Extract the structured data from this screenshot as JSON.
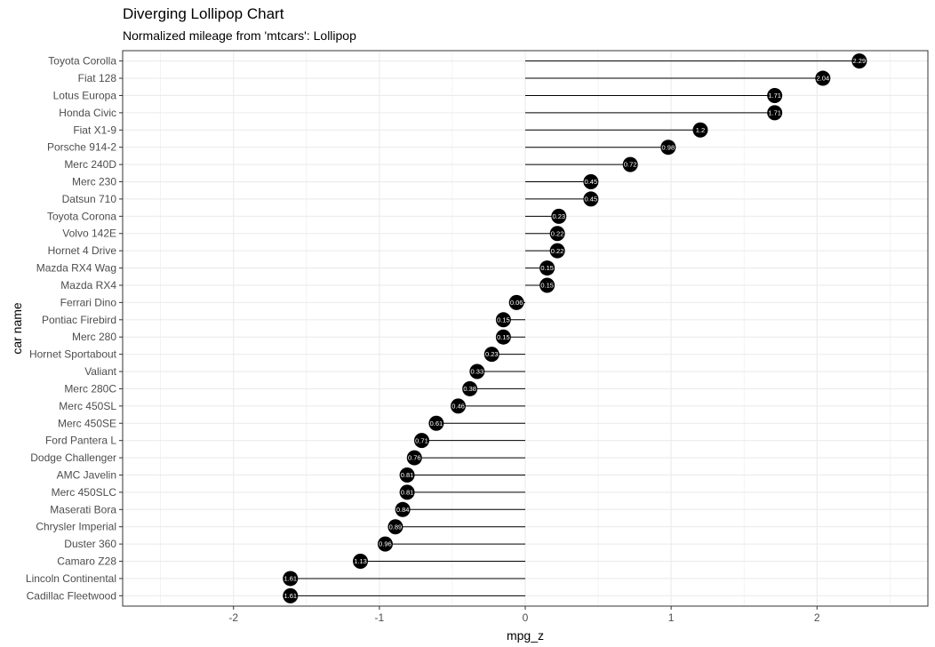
{
  "chart_data": {
    "type": "lollipop",
    "title": "Diverging Lollipop Chart",
    "subtitle": "Normalized mileage from 'mtcars': Lollipop",
    "xlabel": "mpg_z",
    "ylabel": "car name",
    "xlim": [
      -2.76,
      2.76
    ],
    "xticks": [
      -2,
      -1,
      0,
      1,
      2
    ],
    "grid": true,
    "colors": {
      "point": "#000000",
      "segment": "#000000",
      "label": "#ffffff",
      "grid": "#ebebeb",
      "border": "#333333"
    },
    "points": [
      {
        "name": "Toyota Corolla",
        "value": 2.29,
        "label": "2.29"
      },
      {
        "name": "Fiat 128",
        "value": 2.04,
        "label": "2.04"
      },
      {
        "name": "Lotus Europa",
        "value": 1.71,
        "label": "1.71"
      },
      {
        "name": "Honda Civic",
        "value": 1.71,
        "label": "1.71"
      },
      {
        "name": "Fiat X1-9",
        "value": 1.2,
        "label": "1.2"
      },
      {
        "name": "Porsche 914-2",
        "value": 0.98,
        "label": "0.98"
      },
      {
        "name": "Merc 240D",
        "value": 0.72,
        "label": "0.72"
      },
      {
        "name": "Merc 230",
        "value": 0.45,
        "label": "0.45"
      },
      {
        "name": "Datsun 710",
        "value": 0.45,
        "label": "0.45"
      },
      {
        "name": "Toyota Corona",
        "value": 0.23,
        "label": "0.23"
      },
      {
        "name": "Volvo 142E",
        "value": 0.22,
        "label": "0.22"
      },
      {
        "name": "Hornet 4 Drive",
        "value": 0.22,
        "label": "0.22"
      },
      {
        "name": "Mazda RX4 Wag",
        "value": 0.15,
        "label": "0.15"
      },
      {
        "name": "Mazda RX4",
        "value": 0.15,
        "label": "0.15"
      },
      {
        "name": "Ferrari Dino",
        "value": -0.06,
        "label": "0.06"
      },
      {
        "name": "Pontiac Firebird",
        "value": -0.15,
        "label": "0.15"
      },
      {
        "name": "Merc 280",
        "value": -0.15,
        "label": "0.15"
      },
      {
        "name": "Hornet Sportabout",
        "value": -0.23,
        "label": "0.23"
      },
      {
        "name": "Valiant",
        "value": -0.33,
        "label": "0.33"
      },
      {
        "name": "Merc 280C",
        "value": -0.38,
        "label": "0.38"
      },
      {
        "name": "Merc 450SL",
        "value": -0.46,
        "label": "0.46"
      },
      {
        "name": "Merc 450SE",
        "value": -0.61,
        "label": "0.61"
      },
      {
        "name": "Ford Pantera L",
        "value": -0.71,
        "label": "0.71"
      },
      {
        "name": "Dodge Challenger",
        "value": -0.76,
        "label": "0.76"
      },
      {
        "name": "AMC Javelin",
        "value": -0.81,
        "label": "0.81"
      },
      {
        "name": "Merc 450SLC",
        "value": -0.81,
        "label": "0.81"
      },
      {
        "name": "Maserati Bora",
        "value": -0.84,
        "label": "0.84"
      },
      {
        "name": "Chrysler Imperial",
        "value": -0.89,
        "label": "0.89"
      },
      {
        "name": "Duster 360",
        "value": -0.96,
        "label": "0.96"
      },
      {
        "name": "Camaro Z28",
        "value": -1.13,
        "label": "1.13"
      },
      {
        "name": "Lincoln Continental",
        "value": -1.61,
        "label": "1.61"
      },
      {
        "name": "Cadillac Fleetwood",
        "value": -1.61,
        "label": "1.61"
      }
    ]
  }
}
